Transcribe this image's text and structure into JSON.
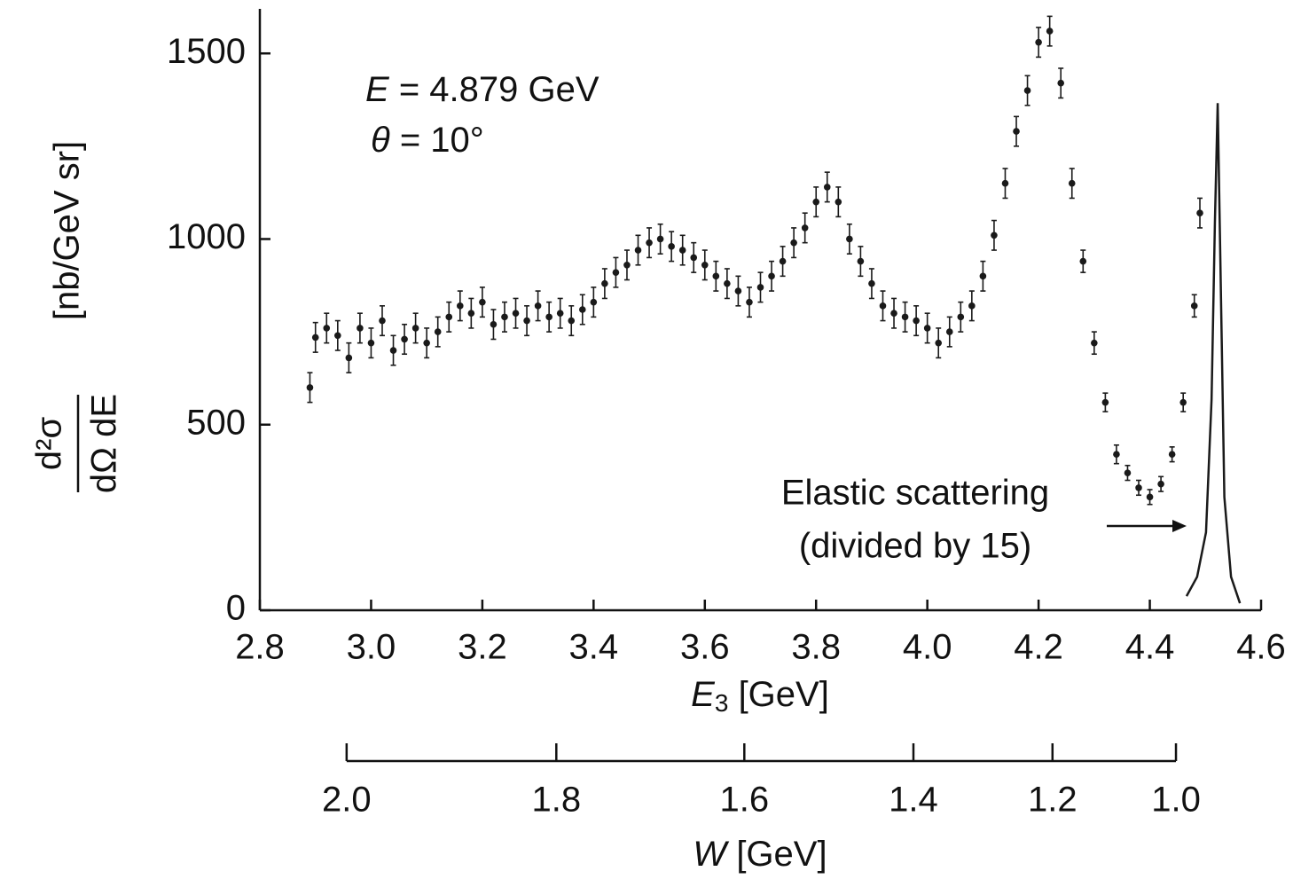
{
  "chart_data": {
    "type": "scatter",
    "xlim": [
      2.8,
      4.6
    ],
    "ylim": [
      0,
      1620
    ],
    "xticks": [
      2.8,
      {
        "value": 3,
        "label": "3.0"
      },
      3.2,
      3.4,
      3.6,
      3.8,
      {
        "value": 4,
        "label": "4.0"
      },
      4.2,
      4.4,
      4.6
    ],
    "yticks": [
      0,
      500,
      1000,
      1500
    ],
    "xlabel": {
      "symbol": "E",
      "subscript": "3",
      "unit": "[GeV]"
    },
    "ylabel": {
      "numerator": "d²σ",
      "denominator": "dΩ dE",
      "unit": "[nb/GeV sr]"
    },
    "x2ticks": [
      {
        "value": 2.956,
        "label": "2.0"
      },
      {
        "value": 3.333,
        "label": "1.8"
      },
      {
        "value": 3.671,
        "label": "1.6"
      },
      {
        "value": 3.975,
        "label": "1.4"
      },
      {
        "value": 4.225,
        "label": "1.2"
      },
      {
        "value": 4.447,
        "label": "1.0"
      }
    ],
    "x2label": {
      "symbol": "W",
      "unit": "[GeV]"
    },
    "annotations": {
      "energy": {
        "symbol": "E",
        "text": "= 4.879 GeV"
      },
      "angle": {
        "symbol": "θ",
        "text": "= 10°"
      },
      "elastic": [
        "Elastic scattering",
        "(divided by 15)"
      ]
    },
    "series": [
      {
        "type": "errorbar",
        "color": "#1a1a1a",
        "x": [
          2.89,
          2.9,
          2.92,
          2.94,
          2.96,
          2.98,
          3.0,
          3.02,
          3.04,
          3.06,
          3.08,
          3.1,
          3.12,
          3.14,
          3.16,
          3.18,
          3.2,
          3.22,
          3.24,
          3.26,
          3.28,
          3.3,
          3.32,
          3.34,
          3.36,
          3.38,
          3.4,
          3.42,
          3.44,
          3.46,
          3.48,
          3.5,
          3.52,
          3.54,
          3.56,
          3.58,
          3.6,
          3.62,
          3.64,
          3.66,
          3.68,
          3.7,
          3.72,
          3.74,
          3.76,
          3.78,
          3.8,
          3.82,
          3.84,
          3.86,
          3.88,
          3.9,
          3.92,
          3.94,
          3.96,
          3.98,
          4.0,
          4.02,
          4.04,
          4.06,
          4.08,
          4.1,
          4.12,
          4.14,
          4.16,
          4.18,
          4.2,
          4.22,
          4.24,
          4.26,
          4.28,
          4.3,
          4.32,
          4.34,
          4.36,
          4.38,
          4.4,
          4.42,
          4.44,
          4.46,
          4.48,
          4.49
        ],
        "values": [
          600,
          735,
          760,
          740,
          680,
          760,
          720,
          780,
          700,
          730,
          760,
          720,
          750,
          790,
          820,
          800,
          830,
          770,
          790,
          800,
          780,
          820,
          790,
          800,
          780,
          810,
          830,
          880,
          910,
          930,
          970,
          990,
          1000,
          980,
          970,
          950,
          930,
          900,
          880,
          860,
          830,
          870,
          900,
          940,
          990,
          1030,
          1100,
          1140,
          1100,
          1000,
          940,
          880,
          820,
          800,
          790,
          780,
          760,
          720,
          750,
          790,
          820,
          900,
          1010,
          1150,
          1290,
          1400,
          1530,
          1560,
          1420,
          1150,
          940,
          720,
          560,
          420,
          370,
          330,
          305,
          340,
          420,
          560,
          820,
          1070
        ],
        "errors": [
          40,
          40,
          40,
          40,
          40,
          40,
          40,
          40,
          40,
          40,
          40,
          40,
          40,
          40,
          40,
          40,
          40,
          40,
          40,
          40,
          40,
          40,
          40,
          40,
          40,
          40,
          40,
          40,
          40,
          40,
          40,
          40,
          40,
          40,
          40,
          40,
          40,
          40,
          40,
          40,
          40,
          40,
          40,
          40,
          40,
          40,
          40,
          40,
          40,
          40,
          40,
          40,
          40,
          40,
          40,
          40,
          40,
          40,
          40,
          40,
          40,
          40,
          40,
          40,
          40,
          40,
          40,
          40,
          40,
          40,
          30,
          30,
          25,
          25,
          20,
          20,
          20,
          20,
          20,
          25,
          30,
          40
        ]
      },
      {
        "type": "line",
        "color": "#1a1a1a",
        "x": [
          4.466,
          4.485,
          4.501,
          4.511,
          4.517,
          4.522,
          4.527,
          4.534,
          4.546,
          4.562
        ],
        "values": [
          38,
          90,
          210,
          568,
          1045,
          1366,
          926,
          305,
          90,
          19
        ]
      }
    ]
  }
}
